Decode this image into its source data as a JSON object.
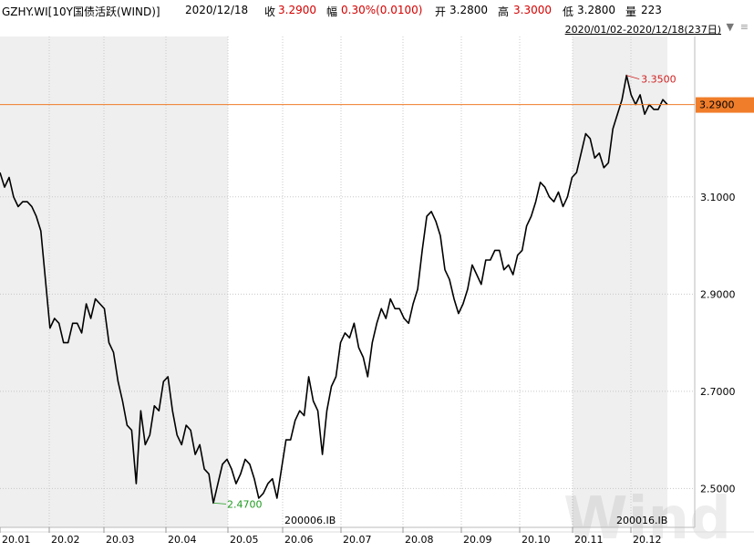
{
  "header": {
    "code": "GZHY.WI[10Y国债活跃(WIND)]",
    "date": "2020/12/18",
    "close_label": "收",
    "close_value": "3.2900",
    "change_label": "幅",
    "change_value": "0.30%(0.0100)",
    "open_label": "开",
    "open_value": "3.2800",
    "high_label": "高",
    "high_value": "3.3000",
    "low_label": "低",
    "low_value": "3.2800",
    "volume_label": "量",
    "volume_value": "223"
  },
  "range": {
    "text": "2020/01/02-2020/12/18(237日)"
  },
  "watermark": "Wind",
  "colors": {
    "line": "#000000",
    "current_price": "#f07d2a",
    "max_label": "#d02020",
    "min_label": "#1f9a1f",
    "shade": "#efefef",
    "grid": "#c8c8c8"
  },
  "chart_data": {
    "type": "line",
    "title": "",
    "xlabel": "",
    "ylabel": "",
    "ylim": [
      2.42,
      3.43
    ],
    "y_ticks": [
      "3.1000",
      "2.9000",
      "2.7000",
      "2.5000"
    ],
    "x_ticks": [
      "20.01",
      "20.02",
      "20.03",
      "20.04",
      "20.05",
      "20.06",
      "20.07",
      "20.08",
      "20.09",
      "20.10",
      "20.11",
      "20.12"
    ],
    "contract_labels": [
      "200006.IB",
      "200016.IB"
    ],
    "current_price": "3.2900",
    "max_label": "3.3500",
    "min_label": "2.4700",
    "series": [
      {
        "values": [
          3.15,
          3.12,
          3.14,
          3.1,
          3.08,
          3.09,
          3.09,
          3.08,
          3.06,
          3.03,
          2.93,
          2.83,
          2.85,
          2.84,
          2.8,
          2.8,
          2.84,
          2.84,
          2.82,
          2.88,
          2.85,
          2.89,
          2.88,
          2.87,
          2.8,
          2.78,
          2.72,
          2.68,
          2.63,
          2.62,
          2.51,
          2.66,
          2.59,
          2.61,
          2.67,
          2.66,
          2.72,
          2.73,
          2.66,
          2.61,
          2.59,
          2.63,
          2.62,
          2.57,
          2.59,
          2.54,
          2.53,
          2.47,
          2.51,
          2.55,
          2.56,
          2.54,
          2.51,
          2.53,
          2.56,
          2.55,
          2.52,
          2.48,
          2.49,
          2.51,
          2.52,
          2.48,
          2.54,
          2.6,
          2.6,
          2.64,
          2.66,
          2.65,
          2.73,
          2.68,
          2.66,
          2.57,
          2.66,
          2.71,
          2.73,
          2.8,
          2.82,
          2.81,
          2.84,
          2.79,
          2.77,
          2.73,
          2.8,
          2.84,
          2.87,
          2.85,
          2.89,
          2.87,
          2.87,
          2.85,
          2.84,
          2.88,
          2.91,
          2.99,
          3.06,
          3.07,
          3.05,
          3.02,
          2.95,
          2.93,
          2.89,
          2.86,
          2.88,
          2.91,
          2.96,
          2.94,
          2.92,
          2.97,
          2.97,
          2.99,
          2.99,
          2.95,
          2.96,
          2.94,
          2.98,
          2.99,
          3.04,
          3.06,
          3.09,
          3.13,
          3.12,
          3.1,
          3.09,
          3.11,
          3.08,
          3.1,
          3.14,
          3.15,
          3.19,
          3.23,
          3.22,
          3.18,
          3.19,
          3.16,
          3.17,
          3.24,
          3.27,
          3.3,
          3.35,
          3.31,
          3.29,
          3.31,
          3.27,
          3.29,
          3.28,
          3.28,
          3.3,
          3.29
        ]
      }
    ]
  }
}
